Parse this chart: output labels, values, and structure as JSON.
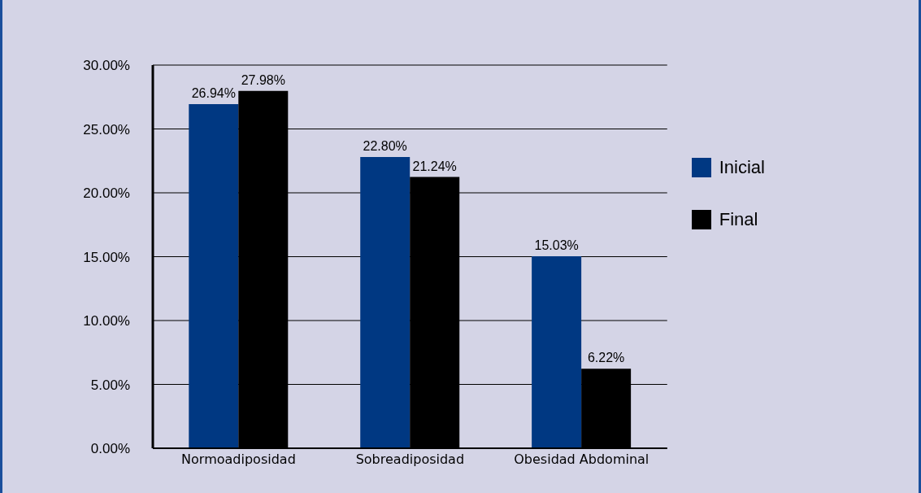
{
  "chart_data": {
    "type": "bar",
    "categories": [
      "Normoadiposidad",
      "Sobreadiposidad",
      "Obesidad Abdominal"
    ],
    "series": [
      {
        "name": "Inicial",
        "color": "#003882",
        "values": [
          26.94,
          22.8,
          15.03
        ],
        "value_labels": [
          "26.94%",
          "22.80%",
          "15.03%"
        ]
      },
      {
        "name": "Final",
        "color": "#000000",
        "values": [
          27.98,
          21.24,
          6.22
        ],
        "value_labels": [
          "27.98%",
          "21.24%",
          "6.22%"
        ]
      }
    ],
    "ylim": [
      0,
      30
    ],
    "yticks": [
      {
        "value": 0,
        "label": "0.00%"
      },
      {
        "value": 5,
        "label": "5.00%"
      },
      {
        "value": 10,
        "label": "10.00%"
      },
      {
        "value": 15,
        "label": "15.00%"
      },
      {
        "value": 20,
        "label": "20.00%"
      },
      {
        "value": 25,
        "label": "25.00%"
      },
      {
        "value": 30,
        "label": "30.00%"
      }
    ],
    "grid": "y",
    "legend": "right"
  }
}
